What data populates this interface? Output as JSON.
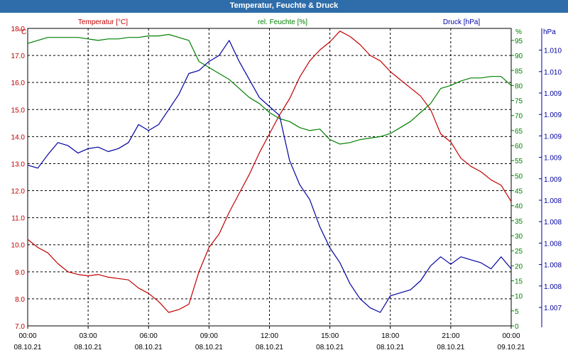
{
  "window": {
    "title": "Temperatur, Feuchte & Druck"
  },
  "legend": {
    "temperature": "Temperatur [°C]",
    "humidity": "rel. Feuchte [%]",
    "pressure": "Druck [hPa]"
  },
  "units": {
    "temp": "°C",
    "hum": "%",
    "pres": "hPa"
  },
  "colors": {
    "temperature": "#c00000",
    "humidity": "#008000",
    "pressure": "#0000a0",
    "grid": "#000000",
    "frame": "#000000"
  },
  "chart_data": {
    "type": "line",
    "grid": true,
    "x_ticks": [
      {
        "time": "00:00",
        "date": "08.10.21"
      },
      {
        "time": "03:00",
        "date": "08.10.21"
      },
      {
        "time": "06:00",
        "date": "08.10.21"
      },
      {
        "time": "09:00",
        "date": "08.10.21"
      },
      {
        "time": "12:00",
        "date": "08.10.21"
      },
      {
        "time": "15:00",
        "date": "08.10.21"
      },
      {
        "time": "18:00",
        "date": "08.10.21"
      },
      {
        "time": "21:00",
        "date": "08.10.21"
      },
      {
        "time": "00:00",
        "date": "09.10.21"
      }
    ],
    "x_hours": [
      0,
      0.5,
      1,
      1.5,
      2,
      2.5,
      3,
      3.5,
      4,
      4.5,
      5,
      5.5,
      6,
      6.5,
      7,
      7.5,
      8,
      8.5,
      9,
      9.5,
      10,
      10.5,
      11,
      11.5,
      12,
      12.5,
      13,
      13.5,
      14,
      14.5,
      15,
      15.5,
      16,
      16.5,
      17,
      17.5,
      18,
      18.5,
      19,
      19.5,
      20,
      20.5,
      21,
      21.5,
      22,
      22.5,
      23,
      23.5,
      24
    ],
    "temp_axis": {
      "min": 7.0,
      "max": 18.0,
      "ticks": [
        "7.0",
        "8.0",
        "9.0",
        "10.0",
        "11.0",
        "12.0",
        "13.0",
        "14.0",
        "15.0",
        "16.0",
        "17.0",
        "18.0"
      ]
    },
    "hum_axis": {
      "min": 0,
      "max": 99,
      "ticks": [
        "0",
        "5",
        "10",
        "15",
        "20",
        "25",
        "30",
        "35",
        "40",
        "45",
        "50",
        "55",
        "60",
        "65",
        "70",
        "75",
        "80",
        "85",
        "90",
        "95"
      ]
    },
    "pres_axis": {
      "ticks": [
        "1.007",
        "1.008",
        "1.008",
        "1.008",
        "1.008",
        "1.008",
        "1.009",
        "1.009",
        "1.009",
        "1.009",
        "1.009",
        "1.010",
        "1.010"
      ]
    },
    "series": [
      {
        "name": "Temperatur [°C]",
        "axis": "temp",
        "values": [
          10.2,
          9.9,
          9.7,
          9.3,
          9.0,
          8.9,
          8.85,
          8.9,
          8.8,
          8.75,
          8.7,
          8.4,
          8.2,
          7.9,
          7.5,
          7.6,
          7.8,
          9.0,
          9.9,
          10.4,
          11.2,
          11.9,
          12.6,
          13.4,
          14.1,
          14.8,
          15.4,
          16.2,
          16.8,
          17.2,
          17.5,
          17.9,
          17.7,
          17.4,
          17.0,
          16.8,
          16.4,
          16.1,
          15.8,
          15.5,
          15.0,
          14.1,
          13.8,
          13.2,
          12.9,
          12.7,
          12.4,
          12.2,
          11.6
        ]
      },
      {
        "name": "rel. Feuchte [%]",
        "axis": "hum",
        "values": [
          94,
          95,
          96,
          96,
          96,
          96,
          95.5,
          95,
          95.5,
          95.5,
          96,
          96,
          96.5,
          96.5,
          97,
          96,
          95,
          88,
          86,
          84,
          82,
          79,
          76,
          74,
          71,
          69,
          68,
          66,
          65,
          65.5,
          62,
          60.5,
          61,
          62,
          62.5,
          63,
          64,
          66,
          68,
          71,
          74,
          79,
          80,
          81.5,
          82.5,
          82.5,
          83,
          83,
          80
        ]
      },
      {
        "name": "Druck [hPa]",
        "axis": "pres",
        "values": [
          53.5,
          52.5,
          57,
          61,
          60,
          57.5,
          59,
          59.5,
          58,
          59,
          61,
          67,
          65,
          67,
          72,
          77,
          84,
          85,
          88,
          90,
          95,
          88,
          82,
          76,
          73,
          70,
          55,
          47,
          42,
          33,
          26,
          21,
          14,
          9,
          6,
          4.5,
          10,
          11,
          12,
          15,
          20,
          23,
          20.5,
          23,
          22,
          21,
          19,
          23,
          19
        ]
      }
    ]
  }
}
